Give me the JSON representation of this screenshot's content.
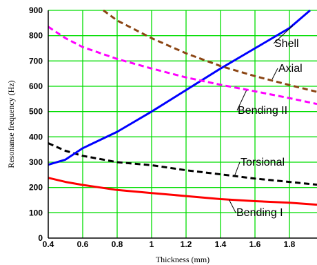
{
  "chart_data": {
    "type": "line",
    "xlabel": "Thickness  (mm)",
    "ylabel": "Resonanse frequency  (Hz)",
    "xlim": [
      0.4,
      1.96
    ],
    "ylim": [
      0,
      900
    ],
    "xticks": [
      "0.4",
      "0.6",
      "0.8",
      "1",
      "1.2",
      "1.4",
      "1.6",
      "1.8"
    ],
    "yticks": [
      "0",
      "100",
      "200",
      "300",
      "400",
      "500",
      "600",
      "700",
      "800",
      "900"
    ],
    "grid": true,
    "grid_color": "#00dd00",
    "series": [
      {
        "name": "Bending I",
        "color": "#ff0000",
        "style": "solid",
        "x": [
          0.4,
          0.5,
          0.6,
          0.8,
          1.0,
          1.2,
          1.4,
          1.6,
          1.8,
          1.96
        ],
        "y": [
          238,
          222,
          210,
          190,
          178,
          166,
          154,
          146,
          140,
          132
        ]
      },
      {
        "name": "Torsional",
        "color": "#000000",
        "style": "dashed",
        "x": [
          0.4,
          0.5,
          0.6,
          0.8,
          1.0,
          1.2,
          1.4,
          1.6,
          1.8,
          1.96
        ],
        "y": [
          375,
          345,
          325,
          300,
          288,
          268,
          252,
          235,
          222,
          211
        ]
      },
      {
        "name": "Shell",
        "color": "#0000ff",
        "style": "solid",
        "x": [
          0.4,
          0.5,
          0.6,
          0.8,
          1.0,
          1.2,
          1.4,
          1.6,
          1.8,
          1.92
        ],
        "y": [
          290,
          310,
          355,
          420,
          500,
          585,
          670,
          750,
          830,
          900
        ]
      },
      {
        "name": "Bending II",
        "color": "#ff00ff",
        "style": "dashed",
        "x": [
          0.4,
          0.5,
          0.6,
          0.8,
          1.0,
          1.2,
          1.4,
          1.6,
          1.8,
          1.96
        ],
        "y": [
          835,
          790,
          755,
          708,
          670,
          635,
          606,
          580,
          553,
          530
        ]
      },
      {
        "name": "Axial",
        "color": "#8b4513",
        "style": "dashed",
        "x": [
          0.72,
          0.8,
          1.0,
          1.2,
          1.4,
          1.6,
          1.8,
          1.96
        ],
        "y": [
          900,
          860,
          790,
          730,
          680,
          640,
          605,
          578
        ]
      }
    ],
    "annotations": [
      {
        "text": "Shell",
        "series": "Shell"
      },
      {
        "text": "Axial",
        "series": "Axial"
      },
      {
        "text": "Bending II",
        "series": "Bending II"
      },
      {
        "text": "Torsional",
        "series": "Torsional"
      },
      {
        "text": "Bending I",
        "series": "Bending I"
      }
    ]
  }
}
